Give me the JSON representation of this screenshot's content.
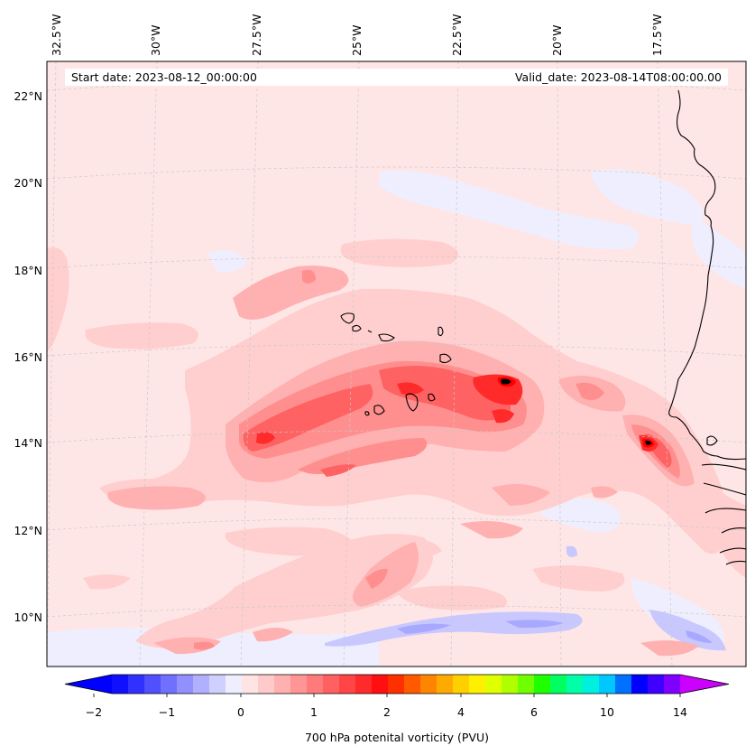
{
  "map": {
    "start_date_label": "Start date: 2023-08-12_00:00:00",
    "valid_date_label": "Valid_date: 2023-08-14T08:00:00.00",
    "lon_labels": [
      "32.5°W",
      "30°W",
      "27.5°W",
      "25°W",
      "22.5°W",
      "20°W",
      "17.5°W"
    ],
    "lat_labels": [
      "22°N",
      "20°N",
      "18°N",
      "16°N",
      "14°N",
      "12°N",
      "10°N"
    ],
    "gridlines": "dashed"
  },
  "colorbar": {
    "title": "700 hPa potenital vorticity (PVU)",
    "tick_labels": [
      "−2",
      "−1",
      "0",
      "1",
      "2",
      "4",
      "6",
      "10",
      "14"
    ],
    "colors": [
      "#1010ff",
      "#3030ff",
      "#5050ff",
      "#7070ff",
      "#9090ff",
      "#b0b0ff",
      "#d0d0ff",
      "#eeeeff",
      "#ffe4e4",
      "#ffcaca",
      "#ffb0b0",
      "#ff9595",
      "#ff7b7b",
      "#ff6060",
      "#ff4545",
      "#ff2b2b",
      "#ff0f0f",
      "#ff3000",
      "#ff5a00",
      "#ff8500",
      "#ffaa00",
      "#ffd000",
      "#fff000",
      "#e0ff00",
      "#b0ff00",
      "#70ff00",
      "#20ff00",
      "#00ff60",
      "#00ffa8",
      "#00f0e0",
      "#00c8ff",
      "#0070ff",
      "#0000ff",
      "#4000ff",
      "#8000ff"
    ],
    "under_color": "#0000ff",
    "over_color": "#cc00ff"
  },
  "colors": {
    "background_pv": "#ffe6e6",
    "coastline": "#000000",
    "gridline": "#c8c8c8"
  }
}
